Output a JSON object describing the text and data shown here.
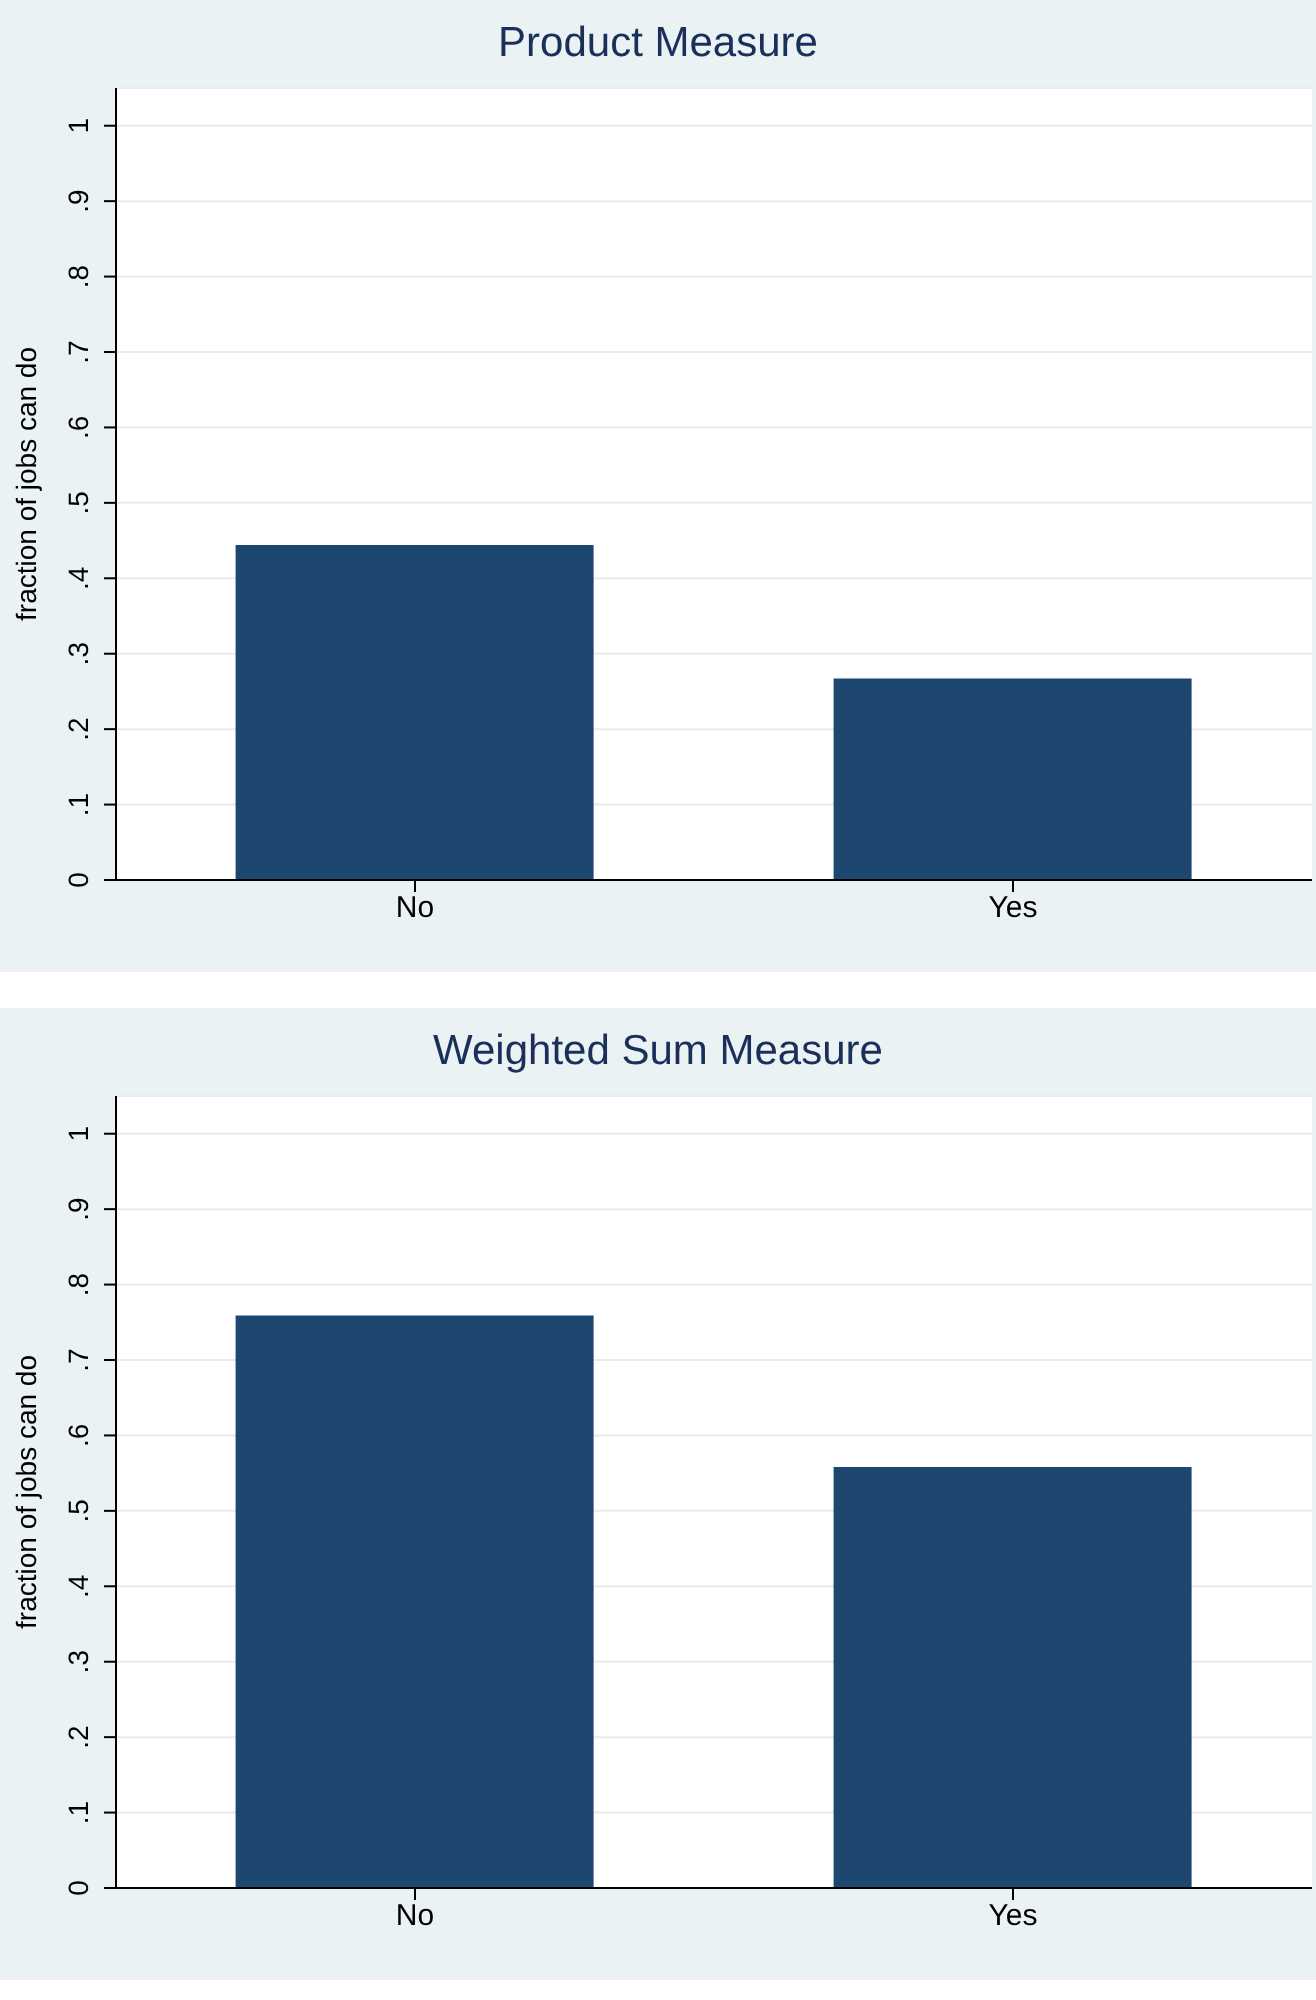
{
  "chart_data": [
    {
      "type": "bar",
      "title": "Product Measure",
      "ylabel": "fraction of jobs can do",
      "categories": [
        "No",
        "Yes"
      ],
      "values": [
        0.444,
        0.267
      ],
      "color": "#1d476f",
      "ylim": [
        0,
        1.05
      ],
      "yticks": [
        {
          "value": 0,
          "label": "0"
        },
        {
          "value": 0.1,
          "label": ".1"
        },
        {
          "value": 0.2,
          "label": ".2"
        },
        {
          "value": 0.3,
          "label": ".3"
        },
        {
          "value": 0.4,
          "label": ".4"
        },
        {
          "value": 0.5,
          "label": ".5"
        },
        {
          "value": 0.6,
          "label": ".6"
        },
        {
          "value": 0.7,
          "label": ".7"
        },
        {
          "value": 0.8,
          "label": ".8"
        },
        {
          "value": 0.9,
          "label": ".9"
        },
        {
          "value": 1,
          "label": "1"
        }
      ],
      "grid": "y",
      "legend": false
    },
    {
      "type": "bar",
      "title": "Weighted Sum Measure",
      "ylabel": "fraction of jobs can do",
      "categories": [
        "No",
        "Yes"
      ],
      "values": [
        0.759,
        0.558
      ],
      "color": "#1d476f",
      "ylim": [
        0,
        1.05
      ],
      "yticks": [
        {
          "value": 0,
          "label": "0"
        },
        {
          "value": 0.1,
          "label": ".1"
        },
        {
          "value": 0.2,
          "label": ".2"
        },
        {
          "value": 0.3,
          "label": ".3"
        },
        {
          "value": 0.4,
          "label": ".4"
        },
        {
          "value": 0.5,
          "label": ".5"
        },
        {
          "value": 0.6,
          "label": ".6"
        },
        {
          "value": 0.7,
          "label": ".7"
        },
        {
          "value": 0.8,
          "label": ".8"
        },
        {
          "value": 0.9,
          "label": ".9"
        },
        {
          "value": 1,
          "label": "1"
        }
      ],
      "grid": "y",
      "legend": false
    }
  ]
}
